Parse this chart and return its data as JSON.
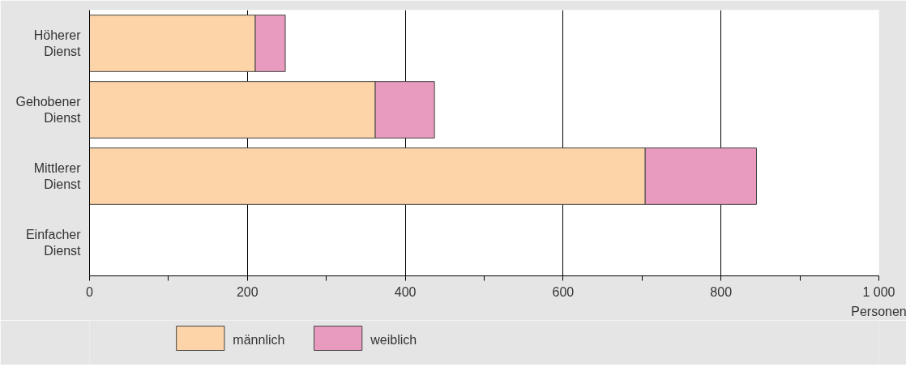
{
  "chart_data": {
    "type": "bar",
    "orientation": "horizontal",
    "stacked": true,
    "categories": [
      "Höherer Dienst",
      "Gehobener Dienst",
      "Mittlerer Dienst",
      "Einfacher Dienst"
    ],
    "series": [
      {
        "name": "männlich",
        "color": "#fdd3a8",
        "values": [
          210,
          362,
          704,
          0
        ]
      },
      {
        "name": "weiblich",
        "color": "#e89bbf",
        "values": [
          38,
          75,
          141,
          0
        ]
      }
    ],
    "xlabel": "Personen",
    "xlim": [
      0,
      1000
    ],
    "xticks": [
      0,
      {
        "value": 100,
        "label": null
      },
      200,
      {
        "value": 300,
        "label": null
      },
      400,
      {
        "value": 500,
        "label": null
      },
      600,
      {
        "value": 700,
        "label": null
      },
      800,
      {
        "value": 900,
        "label": null
      },
      {
        "value": 1000,
        "label": "1 000"
      }
    ],
    "grid": "x",
    "legend": "bottom left"
  }
}
